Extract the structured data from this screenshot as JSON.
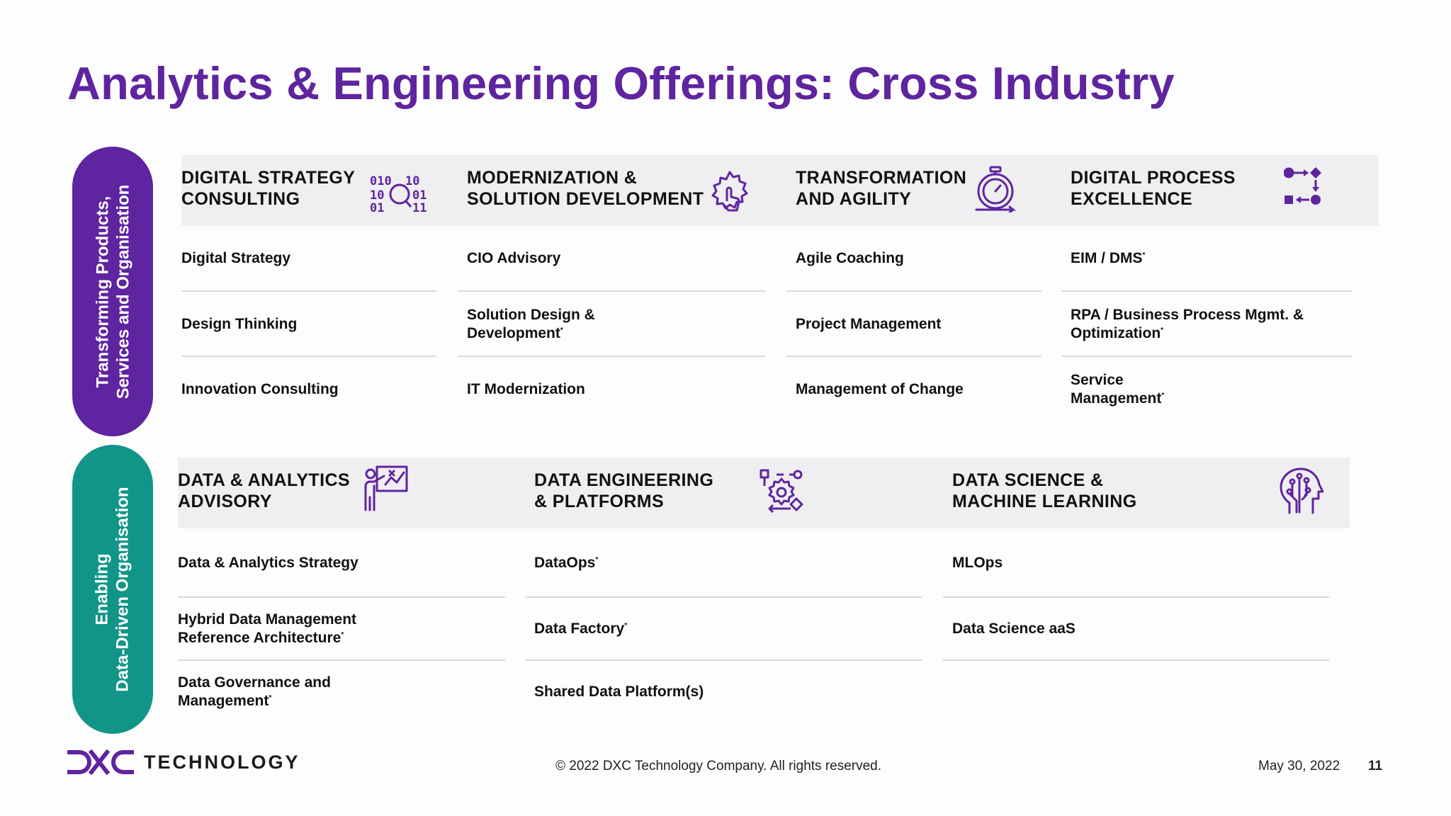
{
  "title": "Analytics & Engineering Offerings: Cross Industry",
  "colors": {
    "brand_purple": "#5f249f",
    "teal": "#119588",
    "band_gray": "#efeef1"
  },
  "section1": {
    "label_line1": "Transforming Products,",
    "label_line2": "Services and Organisation",
    "columns": [
      {
        "title": "DIGITAL STRATEGY\nCONSULTING",
        "icon": "binary-magnifier-icon",
        "items": [
          {
            "text": "Digital Strategy",
            "star": ""
          },
          {
            "text": "Design Thinking",
            "star": ""
          },
          {
            "text": "Innovation Consulting",
            "star": ""
          }
        ]
      },
      {
        "title": "MODERNIZATION &\nSOLUTION  DEVELOPMENT",
        "icon": "gear-hand-icon",
        "items": [
          {
            "text": "CIO Advisory",
            "star": ""
          },
          {
            "text": "Solution Design & Development",
            "star": "*"
          },
          {
            "text": "IT Modernization",
            "star": ""
          }
        ]
      },
      {
        "title": "TRANSFORMATION\nAND AGILITY",
        "icon": "stopwatch-icon",
        "items": [
          {
            "text": "Agile Coaching",
            "star": ""
          },
          {
            "text": "Project Management",
            "star": ""
          },
          {
            "text": "Management of Change",
            "star": ""
          }
        ]
      },
      {
        "title": "DIGITAL PROCESS\nEXCELLENCE",
        "icon": "process-flow-icon",
        "items": [
          {
            "text": "EIM / DMS",
            "star": "*"
          },
          {
            "text": "RPA / Business Process Mgmt. & Optimization",
            "star": "*"
          },
          {
            "text": "Service Management",
            "star": "*"
          }
        ]
      }
    ]
  },
  "section2": {
    "label_line1": "Enabling",
    "label_line2": "Data-Driven Organisation",
    "columns": [
      {
        "title": "DATA & ANALYTICS\nADVISORY",
        "icon": "presenter-chart-icon",
        "items": [
          {
            "text": "Data & Analytics Strategy",
            "star": ""
          },
          {
            "text": "Hybrid Data Management Reference Architecture",
            "star": "*"
          },
          {
            "text": "Data Governance and Management",
            "star": "*"
          }
        ]
      },
      {
        "title": "DATA ENGINEERING\n& PLATFORMS",
        "icon": "gear-cycle-icon",
        "items": [
          {
            "text": "DataOps",
            "star": "*"
          },
          {
            "text": "Data Factory",
            "star": "*"
          },
          {
            "text": "Shared Data Platform(s)",
            "star": ""
          }
        ]
      },
      {
        "title": "DATA SCIENCE &\nMACHINE LEARNING",
        "icon": "ai-head-icon",
        "items": [
          {
            "text": "MLOps",
            "star": ""
          },
          {
            "text": "Data Science aaS",
            "star": ""
          }
        ]
      }
    ]
  },
  "footer": {
    "logo_text": "TECHNOLOGY",
    "copyright": "© 2022 DXC Technology Company. All rights reserved.",
    "date": "May 30, 2022",
    "page": "11"
  }
}
